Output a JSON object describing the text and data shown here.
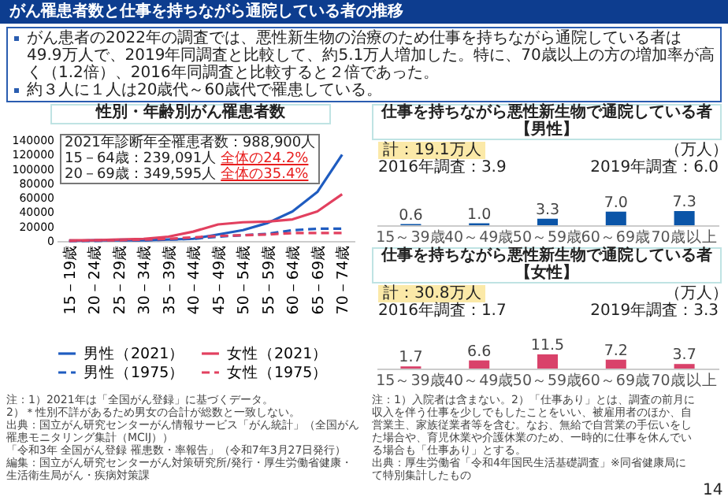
{
  "chart_data": [
    {
      "type": "other",
      "title": "がん罹患者数と仕事を持ちながら通院している者の推移",
      "annotations": [
        "がん患者の2022年の調査では、悪性新生物の治療のため仕事を持ちながら通院している者は49.9万人で、2019年同調査と比較して、約5.1万人増加した。特に、70歳以上の方の増加率が高く（1.2倍）、2016年同調査と比較すると２倍であった。",
        "約３人に１人は20歳代～60歳代で罹患している。",
        "14"
      ]
    },
    {
      "type": "line",
      "title": "性別・年齢別がん罹患者数",
      "categories": [
        "15－19歳",
        "20－24歳",
        "25－29歳",
        "30－34歳",
        "35－39歳",
        "40－44歳",
        "45－49歳",
        "50－54歳",
        "55－59歳",
        "60－64歳",
        "65－69歳",
        "70－74歳"
      ],
      "series": [
        {
          "name": "男性（2021）",
          "color": "#1f5cc0",
          "line_style": "solid",
          "values": [
            0,
            1000,
            1000,
            1000,
            2000,
            3000,
            9000,
            15000,
            25000,
            41000,
            68000,
            120000
          ]
        },
        {
          "name": "女性（2021）",
          "color": "#e2405f",
          "line_style": "solid",
          "values": [
            1000,
            1000,
            2000,
            3000,
            6000,
            13000,
            23000,
            26000,
            27000,
            30000,
            41000,
            65000
          ]
        },
        {
          "name": "男性（1975）",
          "color": "#1f5cc0",
          "line_style": "dashed",
          "values": [
            0,
            0,
            1000,
            1000,
            2000,
            3000,
            6000,
            8000,
            10000,
            15000,
            17000,
            17000
          ]
        },
        {
          "name": "女性（1975）",
          "color": "#e2405f",
          "line_style": "dashed",
          "values": [
            0,
            1000,
            1000,
            2000,
            3000,
            5000,
            7000,
            8000,
            9000,
            11000,
            11000,
            11000
          ]
        }
      ],
      "ylim": [
        0,
        140000
      ],
      "yticks": [
        0,
        20000,
        40000,
        60000,
        80000,
        100000,
        120000,
        140000
      ],
      "grid": false,
      "legend": "bottom",
      "annotations": [
        "2021年診断年全罹患者数：988,900人",
        "15－64歳：239,091人",
        "全体の24.2%",
        "20－69歳：349,595人",
        "全体の35.4%",
        "注：1）2021年は「全国がん登録」に基づくデータ。",
        "2）＊性別不詳があるため男女の合計が総数と一致しない。",
        "出典：国立がん研究センターがん情報サービス「がん統計」（全国がん罹患モニタリング集計（MCIJ））",
        "「令和3年 全国がん登録 罹患数・率報告」（令和7年3月27日発行）",
        "編集：国立がん研究センターがん対策研究所/発行・厚生労働省健康・生活衛生局がん・疾病対策課"
      ]
    },
    {
      "type": "bar",
      "title": "仕事を持ちながら悪性新生物で通院している者【男性】",
      "categories": [
        "15～39歳",
        "40～49歳",
        "50～59歳",
        "60～69歳",
        "70歳以上"
      ],
      "values": [
        0.6,
        1.0,
        3.3,
        7.0,
        7.3
      ],
      "value_labels": [
        "0.6",
        "1.0",
        "3.3",
        "7.0",
        "7.3"
      ],
      "color": "#0b55a8",
      "annotations": [
        "計：19.1万人",
        "（万人）",
        "2016年調査：3.9",
        "2019年調査：6.0"
      ]
    },
    {
      "type": "bar",
      "title": "仕事を持ちながら悪性新生物で通院している者【女性】",
      "categories": [
        "15～39歳",
        "40～49歳",
        "50～59歳",
        "60～69歳",
        "70歳以上"
      ],
      "values": [
        1.7,
        6.6,
        11.5,
        7.2,
        3.7
      ],
      "value_labels": [
        "1.7",
        "6.6",
        "11.5",
        "7.2",
        "3.7"
      ],
      "color": "#d9426a",
      "annotations": [
        "計：30.8万人",
        "（万人）",
        "2016年調査：1.7",
        "2019年調査：3.3",
        "注：1）入院者は含まない。2）「仕事あり」とは、調査の前月に収入を伴う仕事を少しでもしたことをいい、被雇用者のほか、自営業主、家族従業者等を含む。なお、無給で自営業の手伝いをした場合や、育児休業や介護休業のため、一時的に仕事を休んでいる場合も「仕事あり」とする。",
        "出典：厚生労働省「令和4年国民生活基礎調査」※同省健康局にて特別集計したもの"
      ]
    }
  ]
}
